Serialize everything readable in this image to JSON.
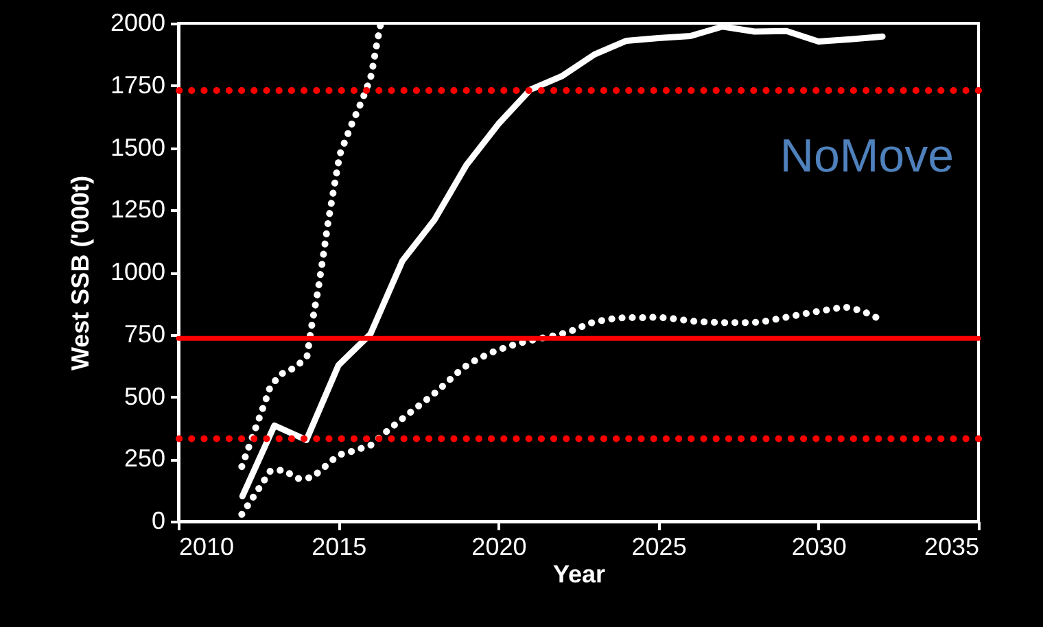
{
  "chart_data": {
    "type": "line",
    "xlabel": "Year",
    "ylabel": "West SSB ('000t)",
    "annotations": [
      "NoMove"
    ],
    "xlim": [
      2010,
      2035
    ],
    "xticks": [
      2010,
      2015,
      2020,
      2025,
      2030,
      2035
    ],
    "ylim": [
      0,
      2000
    ],
    "yticks": [
      0,
      250,
      500,
      750,
      1000,
      1250,
      1500,
      1750,
      2000
    ],
    "grid": false,
    "marker": "none",
    "ref_lines": [
      {
        "axis": "y",
        "value": 1730,
        "color": "#ff0000",
        "line_style": "dotted"
      },
      {
        "axis": "y",
        "value": 735,
        "color": "#ff0000",
        "line_style": "solid"
      },
      {
        "axis": "y",
        "value": 332,
        "color": "#ff0000",
        "line_style": "dotted"
      }
    ],
    "series": [
      {
        "color": "#ffffff",
        "line_style": "solid",
        "x": [
          2012,
          2013,
          2014,
          2015,
          2016,
          2017,
          2018,
          2019,
          2020,
          2021,
          2022,
          2023,
          2024,
          2025,
          2026,
          2027,
          2028,
          2029,
          2030,
          2031,
          2032
        ],
        "values": [
          101,
          385,
          327,
          627,
          752,
          1046,
          1211,
          1431,
          1596,
          1734,
          1789,
          1875,
          1930,
          1941,
          1949,
          1987,
          1967,
          1969,
          1927,
          1936,
          1947
        ]
      },
      {
        "color": "#ffffff",
        "line_style": "dotted",
        "x": [
          2011.98,
          2012.34,
          2012.7,
          2012.87,
          2013.2,
          2013.68,
          2014.02,
          2014.18,
          2014.37,
          2014.53,
          2014.68,
          2014.86,
          2015.04,
          2015.24,
          2015.43,
          2015.65,
          2015.85,
          2016.03,
          2016.21,
          2016.31
        ],
        "values": [
          220,
          349,
          477,
          541,
          591,
          620,
          664,
          798,
          934,
          1070,
          1204,
          1339,
          1472,
          1538,
          1600,
          1664,
          1727,
          1793,
          1925,
          1991
        ]
      },
      {
        "color": "#ffffff",
        "line_style": "dotted",
        "x": [
          2011.98,
          2012.28,
          2012.57,
          2012.87,
          2013.28,
          2013.74,
          2014.18,
          2014.58,
          2014.99,
          2015.5,
          2016.01,
          2016.42,
          2016.82,
          2017.24,
          2017.66,
          2018.07,
          2018.48,
          2018.88,
          2019.32,
          2019.8,
          2020.32,
          2020.82,
          2021.35,
          2021.88,
          2022.37,
          2022.86,
          2023.39,
          2023.92,
          2024.45,
          2024.98,
          2025.53,
          2026.06,
          2026.59,
          2027.12,
          2027.66,
          2028.19,
          2028.72,
          2029.25,
          2029.78,
          2030.3,
          2030.83,
          2031.35,
          2031.82
        ],
        "values": [
          28,
          86,
          143,
          202,
          206,
          172,
          176,
          220,
          266,
          284,
          306,
          352,
          394,
          437,
          479,
          521,
          569,
          615,
          650,
          679,
          703,
          721,
          736,
          749,
          769,
          796,
          811,
          818,
          818,
          820,
          813,
          804,
          800,
          798,
          798,
          800,
          813,
          826,
          839,
          850,
          861,
          846,
          818
        ]
      }
    ]
  }
}
